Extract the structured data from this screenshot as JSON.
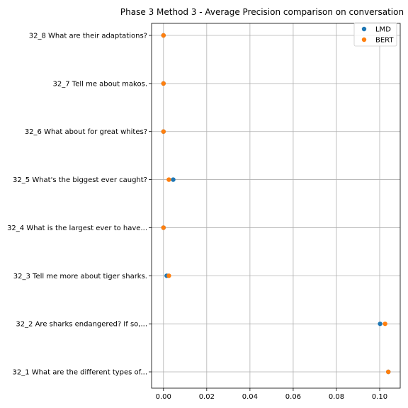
{
  "chart_data": {
    "type": "scatter",
    "title": "Phase 3 Method 3 - Average Precision comparison on conversation",
    "xlabel": "",
    "ylabel": "",
    "xlim": [
      -0.0055,
      0.1095
    ],
    "xticks": [
      "0.00",
      "0.02",
      "0.04",
      "0.06",
      "0.08",
      "0.10"
    ],
    "xtick_values": [
      0.0,
      0.02,
      0.04,
      0.06,
      0.08,
      0.1
    ],
    "categories": [
      "32_1 What are the different types of...",
      "32_2 Are sharks endangered? If so,...",
      "32_3 Tell me more about tiger sharks.",
      "32_4 What is the largest ever to have...",
      "32_5 What's the biggest ever caught?",
      "32_6 What about for great whites?",
      "32_7 Tell me about makos.",
      "32_8 What are their adaptations?"
    ],
    "series": [
      {
        "name": "LMD",
        "color": "#1f77b4",
        "values": [
          0.104,
          0.1002,
          0.0015,
          0.0,
          0.0045,
          0.0,
          0.0,
          0.0
        ]
      },
      {
        "name": "BERT",
        "color": "#ff7f0e",
        "values": [
          0.104,
          0.1025,
          0.0025,
          0.0,
          0.0025,
          0.0,
          0.0,
          0.0
        ]
      }
    ],
    "grid": true,
    "legend_position": "top-right"
  }
}
